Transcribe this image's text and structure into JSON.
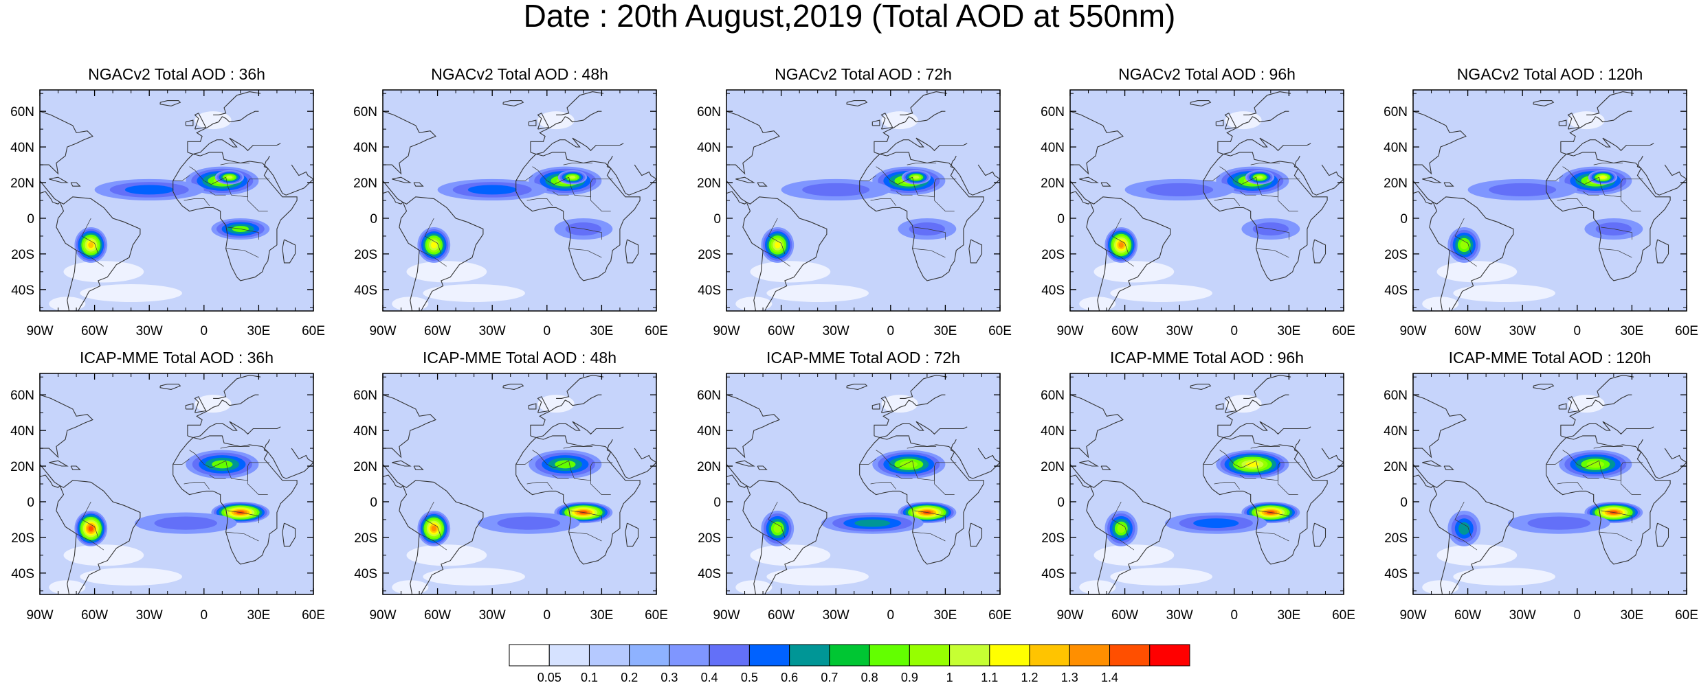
{
  "title": "Date : 20th August,2019 (Total AOD at 550nm)",
  "lat_labels": [
    "60N",
    "40N",
    "20N",
    "0",
    "20S",
    "40S"
  ],
  "lon_labels": [
    "90W",
    "60W",
    "30W",
    "0",
    "30E",
    "60E"
  ],
  "panels": [
    {
      "title": "NGACv2 Total AOD : 36h",
      "model": "NGACv2",
      "lead": "36h",
      "plumes": [
        [
          "saharan",
          0.95
        ],
        [
          "saharan-core",
          1.05
        ],
        [
          "south-america-smoke",
          1.25
        ],
        [
          "central-africa-smoke",
          0.8
        ],
        [
          "atlantic-dust-band",
          0.5
        ]
      ]
    },
    {
      "title": "NGACv2 Total AOD : 48h",
      "model": "NGACv2",
      "lead": "48h",
      "plumes": [
        [
          "saharan",
          0.95
        ],
        [
          "saharan-core",
          1.0
        ],
        [
          "south-america-smoke",
          1.1
        ],
        [
          "central-africa-smoke",
          0.45
        ],
        [
          "atlantic-dust-band",
          0.5
        ]
      ]
    },
    {
      "title": "NGACv2 Total AOD : 72h",
      "model": "NGACv2",
      "lead": "72h",
      "plumes": [
        [
          "saharan",
          0.95
        ],
        [
          "saharan-core",
          1.05
        ],
        [
          "south-america-smoke",
          1.15
        ],
        [
          "central-africa-smoke",
          0.4
        ],
        [
          "atlantic-dust-band",
          0.45
        ]
      ]
    },
    {
      "title": "NGACv2 Total AOD : 96h",
      "model": "NGACv2",
      "lead": "96h",
      "plumes": [
        [
          "saharan",
          0.95
        ],
        [
          "saharan-core",
          1.05
        ],
        [
          "south-america-smoke",
          1.3
        ],
        [
          "central-africa-smoke",
          0.4
        ],
        [
          "atlantic-dust-band",
          0.45
        ]
      ]
    },
    {
      "title": "NGACv2 Total AOD : 120h",
      "model": "NGACv2",
      "lead": "120h",
      "plumes": [
        [
          "saharan",
          0.95
        ],
        [
          "saharan-core",
          1.1
        ],
        [
          "south-america-smoke",
          0.9
        ],
        [
          "central-africa-smoke",
          0.4
        ],
        [
          "atlantic-dust-band",
          0.45
        ]
      ]
    },
    {
      "title": "ICAP-MME Total AOD : 36h",
      "model": "ICAP-MME",
      "lead": "36h",
      "plumes": [
        [
          "saharan",
          0.85
        ],
        [
          "south-america-smoke",
          1.4
        ],
        [
          "central-africa-smoke",
          1.4
        ],
        [
          "atlantic-smoke-band",
          0.45
        ]
      ]
    },
    {
      "title": "ICAP-MME Total AOD : 48h",
      "model": "ICAP-MME",
      "lead": "48h",
      "plumes": [
        [
          "saharan",
          0.85
        ],
        [
          "south-america-smoke",
          1.3
        ],
        [
          "central-africa-smoke",
          1.4
        ],
        [
          "atlantic-smoke-band",
          0.45
        ]
      ]
    },
    {
      "title": "ICAP-MME Total AOD : 72h",
      "model": "ICAP-MME",
      "lead": "72h",
      "plumes": [
        [
          "saharan",
          0.9
        ],
        [
          "south-america-smoke",
          0.9
        ],
        [
          "central-africa-smoke",
          1.4
        ],
        [
          "atlantic-smoke-band",
          0.65
        ]
      ]
    },
    {
      "title": "ICAP-MME Total AOD : 96h",
      "model": "ICAP-MME",
      "lead": "96h",
      "plumes": [
        [
          "saharan",
          1.1
        ],
        [
          "south-america-smoke",
          0.9
        ],
        [
          "central-africa-smoke",
          1.4
        ],
        [
          "atlantic-smoke-band",
          0.5
        ]
      ]
    },
    {
      "title": "ICAP-MME Total AOD : 120h",
      "model": "ICAP-MME",
      "lead": "120h",
      "plumes": [
        [
          "saharan",
          0.9
        ],
        [
          "south-america-smoke",
          0.75
        ],
        [
          "central-africa-smoke",
          1.4
        ],
        [
          "atlantic-smoke-band",
          0.45
        ]
      ]
    }
  ],
  "colorbar": {
    "labels": [
      "0.05",
      "0.1",
      "0.2",
      "0.3",
      "0.4",
      "0.5",
      "0.6",
      "0.7",
      "0.8",
      "0.9",
      "1",
      "1.1",
      "1.2",
      "1.3",
      "1.4"
    ],
    "colors": [
      "#ffffff",
      "#d6e2ff",
      "#b5c9ff",
      "#8eb2ff",
      "#7f96ff",
      "#6370f8",
      "#0062ff",
      "#009696",
      "#00c633",
      "#63ff00",
      "#96ff00",
      "#c6ff33",
      "#ffff00",
      "#ffc400",
      "#ff8f00",
      "#ff4f00",
      "#ff0000"
    ]
  },
  "colors": {
    "ocean_background": "#c6d4fb",
    "coastline": "#333333"
  }
}
